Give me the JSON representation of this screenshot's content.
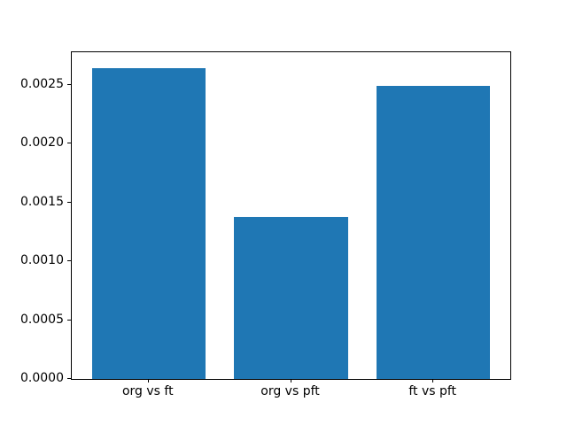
{
  "figure": {
    "background": "#ffffff",
    "axis_color": "#000000"
  },
  "chart_data": {
    "type": "bar",
    "categories": [
      "org vs ft",
      "org vs pft",
      "ft vs pft"
    ],
    "values": [
      0.00264,
      0.00138,
      0.00249
    ],
    "title": "",
    "xlabel": "",
    "ylabel": "",
    "ylim": [
      0,
      0.002775
    ],
    "yticks": [
      0.0,
      0.0005,
      0.001,
      0.0015,
      0.002,
      0.0025
    ],
    "ytick_labels": [
      "0.0000",
      "0.0005",
      "0.0010",
      "0.0015",
      "0.0020",
      "0.0025"
    ],
    "bar_color": "#1f77b4",
    "bar_width_fraction": 0.8,
    "grid": false,
    "legend_position": "none"
  }
}
